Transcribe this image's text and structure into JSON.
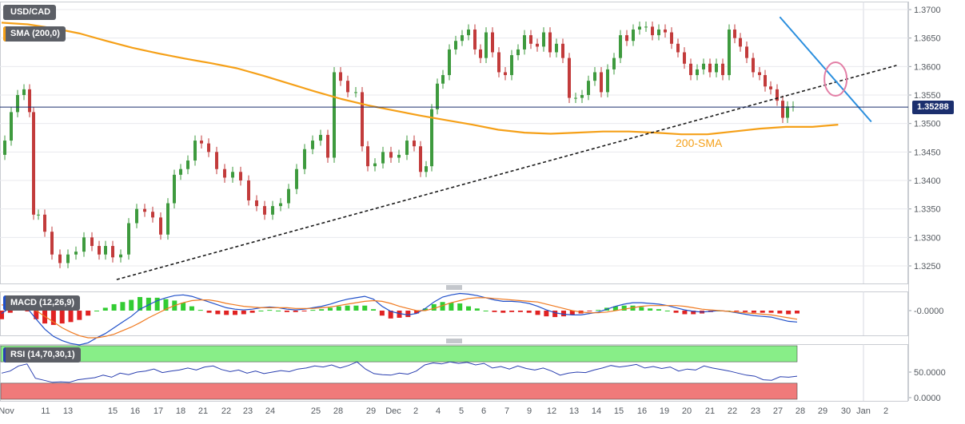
{
  "colors": {
    "bull": "#3e9a3e",
    "bear": "#c23b3b",
    "sma": "#f5a018",
    "trend": "#1a1a1a",
    "resistance": "#2b8fde",
    "price_line": "#1b2f6e",
    "circle": "#e37fa6",
    "macd_line": "#1f4fc9",
    "signal_line": "#f07a20",
    "hist_pos": "#33cc33",
    "hist_neg": "#e02222",
    "rsi_line": "#2a3fb0",
    "rsi_overbought": "#88ee88",
    "rsi_oversold": "#f07a7a",
    "grid": "#e8eaee",
    "axis_text": "#555a60"
  },
  "legend": {
    "symbol": "USD/CAD",
    "sma_label": "SMA (200,0)",
    "macd_label": "MACD (12,26,9)",
    "rsi_label": "RSI (14,70,30,1)"
  },
  "chart_data": [
    {
      "type": "candlestick",
      "title": "USD/CAD",
      "x_ticks": [
        "Nov",
        "11",
        "13",
        "15",
        "16",
        "17",
        "18",
        "21",
        "22",
        "23",
        "24",
        "25",
        "28",
        "29",
        "Dec",
        "2",
        "4",
        "5",
        "6",
        "7",
        "9",
        "12",
        "13",
        "14",
        "15",
        "16",
        "19",
        "20",
        "21",
        "22",
        "23",
        "27",
        "28",
        "29",
        "30",
        "Jan",
        "2"
      ],
      "ylim": [
        1.32,
        1.371
      ],
      "y_ticks": [
        "1.3700",
        "1.3650",
        "1.3600",
        "1.3550",
        "1.3500",
        "1.3450",
        "1.3400",
        "1.3350",
        "1.3300",
        "1.3250"
      ],
      "current_price": "1.35288",
      "annotation": "200-SMA",
      "series": [
        {
          "name": "SMA (200,0)",
          "points": [
            [
              0,
              1.3677
            ],
            [
              3,
              1.3674
            ],
            [
              6,
              1.3667
            ],
            [
              9,
              1.3658
            ],
            [
              12,
              1.3645
            ],
            [
              15,
              1.3633
            ],
            [
              18,
              1.3623
            ],
            [
              21,
              1.3614
            ],
            [
              24,
              1.3606
            ],
            [
              27,
              1.3597
            ],
            [
              30,
              1.3584
            ],
            [
              33,
              1.357
            ],
            [
              36,
              1.3556
            ],
            [
              39,
              1.3543
            ],
            [
              42,
              1.3532
            ],
            [
              45,
              1.3523
            ],
            [
              48,
              1.3514
            ],
            [
              51,
              1.3506
            ],
            [
              54,
              1.3498
            ],
            [
              57,
              1.3489
            ],
            [
              60,
              1.3484
            ],
            [
              63,
              1.3482
            ],
            [
              66,
              1.3484
            ],
            [
              69,
              1.3486
            ],
            [
              72,
              1.3486
            ],
            [
              75,
              1.3484
            ],
            [
              78,
              1.3481
            ],
            [
              81,
              1.3481
            ],
            [
              84,
              1.3486
            ],
            [
              87,
              1.3491
            ],
            [
              90,
              1.3494
            ],
            [
              93,
              1.3494
            ],
            [
              96,
              1.3498
            ]
          ]
        }
      ],
      "support_trendline": [
        [
          13.2,
          1.3226
        ],
        [
          102.7,
          1.3602
        ]
      ],
      "resistance_trendline": [
        [
          89.3,
          1.3687
        ],
        [
          99.8,
          1.3503
        ]
      ],
      "highlight_circle_at": [
        95.7,
        1.3578
      ]
    },
    {
      "type": "line",
      "title": "MACD (12,26,9)",
      "y_ticks": [
        "-0.0000"
      ],
      "series": [
        {
          "name": "MACD",
          "values": [
            -0.0004,
            0.0004,
            0.0008,
            0.0003,
            -0.0012,
            -0.0026,
            -0.0036,
            -0.0042,
            -0.0046,
            -0.0048,
            -0.0045,
            -0.0038,
            -0.0032,
            -0.0024,
            -0.0016,
            -0.0008,
            0.0002,
            0.0008,
            0.0014,
            0.0018,
            0.0021,
            0.0022,
            0.002,
            0.0016,
            0.0012,
            0.0008,
            0.0004,
            0.0002,
            0.0001,
            0.0002,
            0.0004,
            0.0005,
            0.0004,
            0.0002,
            0.0001,
            0.0002,
            0.0004,
            0.0006,
            0.0009,
            0.0013,
            0.0016,
            0.0018,
            0.002,
            0.0016,
            0.0006,
            -0.0001,
            -0.0004,
            -0.0006,
            -0.0004,
            0.0003,
            0.0012,
            0.0019,
            0.0022,
            0.0024,
            0.0023,
            0.0021,
            0.0018,
            0.0015,
            0.0013,
            0.0013,
            0.0012,
            0.001,
            0.0006,
            0.0001,
            -0.0003,
            -0.0005,
            -0.0006,
            -0.0006,
            -0.0004,
            -0.0002,
            0.0002,
            0.0006,
            0.0009,
            0.0011,
            0.0011,
            0.001,
            0.0009,
            0.0007,
            0.0004,
            0.0001,
            -0.0001,
            -0.0002,
            -0.0001,
            0.0,
            -0.0001,
            -0.0003,
            -0.0005,
            -0.0007,
            -0.0008,
            -0.0009,
            -0.0012,
            -0.0015,
            -0.0016
          ]
        },
        {
          "name": "Signal",
          "values": [
            0.0008,
            0.0007,
            0.0006,
            0.0004,
            0.0,
            -0.0008,
            -0.0016,
            -0.0024,
            -0.003,
            -0.0035,
            -0.0038,
            -0.0038,
            -0.0036,
            -0.0033,
            -0.0028,
            -0.0023,
            -0.0017,
            -0.001,
            -0.0004,
            0.0002,
            0.0007,
            0.0011,
            0.0014,
            0.0015,
            0.0015,
            0.0013,
            0.001,
            0.0008,
            0.0006,
            0.0005,
            0.0004,
            0.0004,
            0.0004,
            0.0004,
            0.0003,
            0.0003,
            0.0003,
            0.0004,
            0.0005,
            0.0007,
            0.0009,
            0.0011,
            0.0013,
            0.0014,
            0.0013,
            0.001,
            0.0006,
            0.0003,
            0.0,
            0.0,
            0.0003,
            0.0007,
            0.0011,
            0.0014,
            0.0017,
            0.0018,
            0.0018,
            0.0017,
            0.0016,
            0.0015,
            0.0014,
            0.0013,
            0.0012,
            0.0009,
            0.0006,
            0.0003,
            0.0,
            -0.0002,
            -0.0003,
            -0.0003,
            -0.0002,
            0.0,
            0.0002,
            0.0004,
            0.0006,
            0.0007,
            0.0007,
            0.0007,
            0.0007,
            0.0006,
            0.0004,
            0.0002,
            0.0001,
            0.0,
            -0.0001,
            -0.0002,
            -0.0003,
            -0.0004,
            -0.0005,
            -0.0006,
            -0.0008,
            -0.001,
            -0.0012
          ]
        }
      ]
    },
    {
      "type": "line",
      "title": "RSI (14,70,30,1)",
      "y_ticks": [
        "50.0000",
        "0.0000"
      ],
      "overbought": 70,
      "oversold": 30,
      "ylim": [
        0,
        100
      ],
      "series": [
        {
          "name": "RSI",
          "values": [
            48,
            52,
            62,
            66,
            38,
            34,
            30,
            31,
            30,
            35,
            37,
            39,
            44,
            40,
            48,
            45,
            50,
            52,
            56,
            49,
            52,
            54,
            58,
            54,
            60,
            62,
            55,
            51,
            54,
            48,
            52,
            47,
            50,
            53,
            51,
            56,
            58,
            62,
            60,
            64,
            58,
            63,
            70,
            56,
            47,
            45,
            44,
            48,
            46,
            52,
            64,
            68,
            66,
            70,
            67,
            69,
            64,
            67,
            58,
            61,
            56,
            62,
            57,
            54,
            58,
            52,
            44,
            48,
            50,
            49,
            54,
            58,
            63,
            60,
            62,
            65,
            58,
            61,
            57,
            60,
            52,
            56,
            54,
            62,
            58,
            55,
            52,
            48,
            44,
            42,
            35,
            34,
            41,
            40,
            42
          ]
        }
      ]
    }
  ]
}
